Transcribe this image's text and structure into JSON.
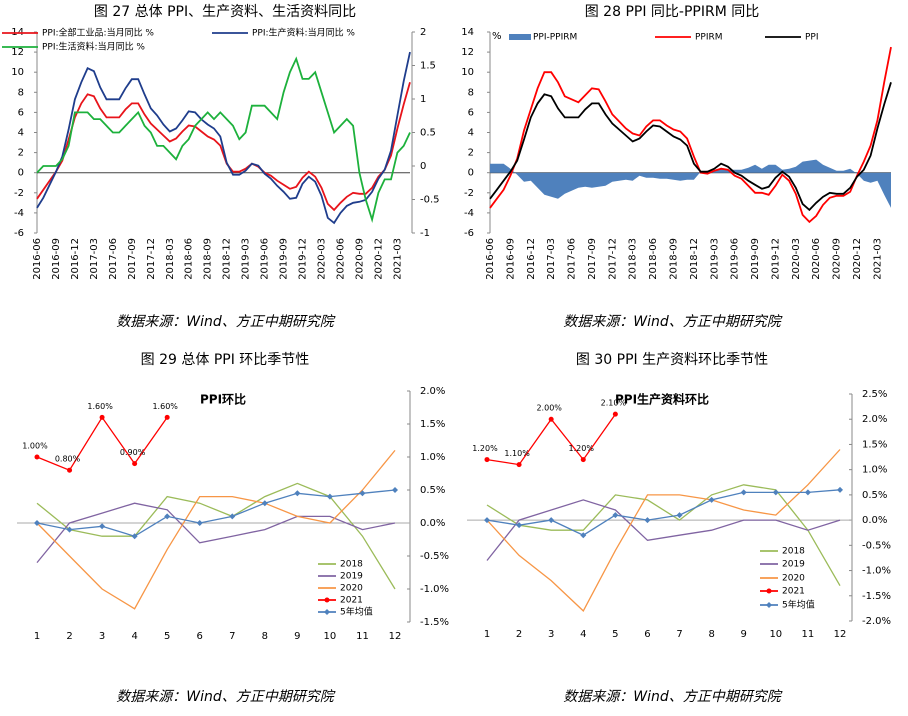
{
  "chart_data": [
    {
      "type": "line",
      "title": "图 27 总体 PPI、生产资料、生活资料同比",
      "source": "数据来源：Wind、方正中期研究院",
      "categories": [
        "2016-06",
        null,
        null,
        "2016-09",
        null,
        null,
        "2016-12",
        null,
        null,
        "2017-03",
        null,
        null,
        "2017-06",
        null,
        null,
        "2017-09",
        null,
        null,
        "2017-12",
        null,
        null,
        "2018-03",
        null,
        null,
        "2018-06",
        null,
        null,
        "2018-09",
        null,
        null,
        "2018-12",
        null,
        null,
        "2019-03",
        null,
        null,
        "2019-06",
        null,
        null,
        "2019-09",
        null,
        null,
        "2019-12",
        null,
        null,
        "2020-03",
        null,
        null,
        "2020-06",
        null,
        null,
        "2020-09",
        null,
        null,
        "2020-12",
        null,
        null,
        "2021-03",
        null,
        null
      ],
      "ylim": [
        -6,
        14
      ],
      "yticks": [
        -6,
        -4,
        -2,
        0,
        2,
        4,
        6,
        8,
        10,
        12,
        14
      ],
      "y2lim": [
        -1,
        2
      ],
      "y2ticks": [
        -1,
        -0.5,
        0,
        0.5,
        1,
        1.5,
        2
      ],
      "legend": "top-left",
      "series": [
        {
          "name": "PPI:全部工业品:当月同比 %",
          "color": "#e8141b",
          "values": [
            -2.6,
            -1.7,
            -0.8,
            0.1,
            1.2,
            3.3,
            5.5,
            6.9,
            7.8,
            7.6,
            6.4,
            5.5,
            5.5,
            5.5,
            6.3,
            6.9,
            6.9,
            5.8,
            4.9,
            4.3,
            3.7,
            3.1,
            3.4,
            4.1,
            4.7,
            4.6,
            4.1,
            3.6,
            3.3,
            2.7,
            0.9,
            0.1,
            0.1,
            0.4,
            0.9,
            0.6,
            0.0,
            -0.3,
            -0.8,
            -1.2,
            -1.6,
            -1.4,
            -0.5,
            0.1,
            -0.4,
            -1.5,
            -3.1,
            -3.7,
            -3.0,
            -2.4,
            -2.0,
            -2.1,
            -2.1,
            -1.5,
            -0.4,
            0.3,
            1.7,
            4.4,
            6.8,
            9.0
          ]
        },
        {
          "name": "PPI:生产资料:当月同比 %",
          "color": "#1f3d8c",
          "values": [
            -3.5,
            -2.5,
            -1.2,
            0.1,
            1.6,
            4.3,
            7.3,
            9.0,
            10.4,
            10.1,
            8.5,
            7.3,
            7.3,
            7.3,
            8.4,
            9.3,
            9.3,
            7.8,
            6.4,
            5.7,
            4.8,
            4.1,
            4.4,
            5.2,
            6.1,
            6.0,
            5.3,
            4.8,
            4.4,
            3.6,
            1.0,
            -0.2,
            -0.2,
            0.2,
            0.9,
            0.7,
            -0.1,
            -0.6,
            -1.3,
            -1.9,
            -2.6,
            -2.5,
            -1.1,
            -0.4,
            -0.9,
            -2.3,
            -4.5,
            -5.0,
            -4.0,
            -3.3,
            -3.0,
            -2.9,
            -2.7,
            -1.9,
            -0.6,
            0.3,
            2.2,
            5.7,
            9.1,
            12.0
          ]
        },
        {
          "name": "PPI:生活资料:当月同比 %",
          "color": "#1db13c",
          "axis": "y2",
          "values": [
            -0.1,
            0,
            0,
            0,
            0.1,
            0.3,
            0.8,
            0.8,
            0.8,
            0.7,
            0.7,
            0.6,
            0.5,
            0.5,
            0.6,
            0.7,
            0.8,
            0.6,
            0.5,
            0.3,
            0.3,
            0.2,
            0.1,
            0.3,
            0.4,
            0.6,
            0.7,
            0.8,
            0.7,
            0.8,
            0.7,
            0.6,
            0.4,
            0.5,
            0.9,
            0.9,
            0.9,
            0.8,
            0.7,
            1.1,
            1.4,
            1.6,
            1.3,
            1.3,
            1.4,
            1.1,
            0.8,
            0.5,
            0.6,
            0.7,
            0.6,
            -0.1,
            -0.5,
            -0.8,
            -0.4,
            -0.2,
            -0.2,
            0.2,
            0.3,
            0.5
          ]
        }
      ]
    },
    {
      "type": "line",
      "title": "图 28 PPI 同比-PPIRM 同比",
      "source": "数据来源：Wind、方正中期研究院",
      "ylabel": "%",
      "categories": [
        "2016-06",
        null,
        null,
        "2016-09",
        null,
        null,
        "2016-12",
        null,
        null,
        "2017-03",
        null,
        null,
        "2017-06",
        null,
        null,
        "2017-09",
        null,
        null,
        "2017-12",
        null,
        null,
        "2018-03",
        null,
        null,
        "2018-06",
        null,
        null,
        "2018-09",
        null,
        null,
        "2018-12",
        null,
        null,
        "2019-03",
        null,
        null,
        "2019-06",
        null,
        null,
        "2019-09",
        null,
        null,
        "2019-12",
        null,
        null,
        "2020-03",
        null,
        null,
        "2020-06",
        null,
        null,
        "2020-09",
        null,
        null,
        "2020-12",
        null,
        null,
        "2021-03",
        null,
        null
      ],
      "ylim": [
        -6,
        14
      ],
      "yticks": [
        -6,
        -4,
        -2,
        0,
        2,
        4,
        6,
        8,
        10,
        12,
        14
      ],
      "legend": "top",
      "series": [
        {
          "name": "PPI-PPIRM",
          "type": "area",
          "color": "#4f81bd",
          "values": [
            0.9,
            0.9,
            0.9,
            0.4,
            -0.2,
            -0.9,
            -0.8,
            -1.5,
            -2.2,
            -2.4,
            -2.6,
            -2.1,
            -1.8,
            -1.5,
            -1.4,
            -1.5,
            -1.4,
            -1.3,
            -0.9,
            -0.8,
            -0.7,
            -0.8,
            -0.3,
            -0.5,
            -0.5,
            -0.6,
            -0.6,
            -0.7,
            -0.8,
            -0.7,
            -0.7,
            0.1,
            0.2,
            0.2,
            0.5,
            0.3,
            0.3,
            0.3,
            0.5,
            0.8,
            0.4,
            0.8,
            0.8,
            0.3,
            0.4,
            0.6,
            1.1,
            1.2,
            1.3,
            0.8,
            0.5,
            0.2,
            0.2,
            0.4,
            -0.1,
            -0.8,
            -1.0,
            -0.8,
            -2.2,
            -3.5
          ]
        },
        {
          "name": "PPIRM",
          "color": "#ff0000",
          "values": [
            -3.5,
            -2.6,
            -1.7,
            -0.3,
            1.4,
            4.2,
            6.3,
            8.4,
            10.0,
            10.0,
            9.0,
            7.6,
            7.3,
            7.0,
            7.7,
            8.4,
            8.3,
            7.1,
            5.8,
            5.1,
            4.4,
            3.9,
            3.7,
            4.6,
            5.2,
            5.2,
            4.7,
            4.3,
            4.1,
            3.4,
            1.6,
            0.0,
            -0.1,
            0.2,
            0.4,
            0.3,
            -0.3,
            -0.6,
            -1.3,
            -2.0,
            -2.0,
            -2.2,
            -1.3,
            -0.2,
            -0.8,
            -2.1,
            -4.2,
            -4.9,
            -4.3,
            -3.2,
            -2.5,
            -2.3,
            -2.3,
            -1.9,
            -0.3,
            1.1,
            2.7,
            5.2,
            9.0,
            12.5
          ]
        },
        {
          "name": "PPI",
          "color": "#000000",
          "values": [
            -2.6,
            -1.7,
            -0.8,
            0.1,
            1.2,
            3.3,
            5.5,
            6.9,
            7.8,
            7.6,
            6.4,
            5.5,
            5.5,
            5.5,
            6.3,
            6.9,
            6.9,
            5.8,
            4.9,
            4.3,
            3.7,
            3.1,
            3.4,
            4.1,
            4.7,
            4.6,
            4.1,
            3.6,
            3.3,
            2.7,
            0.9,
            0.1,
            0.1,
            0.4,
            0.9,
            0.6,
            0.0,
            -0.3,
            -0.8,
            -1.2,
            -1.6,
            -1.4,
            -0.5,
            0.1,
            -0.4,
            -1.5,
            -3.1,
            -3.7,
            -3.0,
            -2.4,
            -2.0,
            -2.1,
            -2.1,
            -1.5,
            -0.4,
            0.3,
            1.7,
            4.4,
            6.8,
            9.0
          ]
        }
      ]
    },
    {
      "type": "line",
      "title": "图 29 总体 PPI 环比季节性",
      "source": "数据来源：Wind、方正中期研究院",
      "annotation": "PPI环比",
      "categories": [
        "1",
        "2",
        "3",
        "4",
        "5",
        "6",
        "7",
        "8",
        "9",
        "10",
        "11",
        "12"
      ],
      "y_axis_position": "right",
      "legend": "bottom-right",
      "ylim": [
        -1.5,
        2.0
      ],
      "yticks": [
        {
          "value": -1.5,
          "label": "-1.5%"
        },
        {
          "value": -1.0,
          "label": "-1.0%"
        },
        {
          "value": -0.5,
          "label": "-0.5%"
        },
        {
          "value": 0,
          "label": "0.0%"
        },
        {
          "value": 0.5,
          "label": "0.5%"
        },
        {
          "value": 1.0,
          "label": "1.0%"
        },
        {
          "value": 1.5,
          "label": "1.5%"
        },
        {
          "value": 2.0,
          "label": "2.0%"
        }
      ],
      "series": [
        {
          "name": "2018",
          "color": "#9bbb59",
          "values": [
            0.3,
            -0.1,
            -0.2,
            -0.2,
            0.4,
            0.3,
            0.1,
            0.4,
            0.6,
            0.4,
            -0.2,
            -1.0
          ]
        },
        {
          "name": "2019",
          "color": "#8064a2",
          "values": [
            -0.6,
            0,
            0.15,
            0.3,
            0.2,
            -0.3,
            -0.2,
            -0.1,
            0.1,
            0.1,
            -0.1,
            0
          ]
        },
        {
          "name": "2020",
          "color": "#f79646",
          "values": [
            0,
            -0.5,
            -1.0,
            -1.3,
            -0.4,
            0.4,
            0.4,
            0.3,
            0.1,
            0,
            0.5,
            1.1
          ]
        },
        {
          "name": "2021",
          "color": "#ff0000",
          "marker": "circle",
          "values": [
            1.0,
            0.8,
            1.6,
            0.9,
            1.6,
            null,
            null,
            null,
            null,
            null,
            null,
            null
          ],
          "value_labels": [
            "1.00%",
            "0.80%",
            "1.60%",
            "0.90%",
            "1.60%",
            null,
            null,
            null,
            null,
            null,
            null,
            null
          ]
        },
        {
          "name": "5年均值",
          "color": "#4f81bd",
          "marker": "diamond",
          "values": [
            0,
            -0.1,
            -0.05,
            -0.2,
            0.1,
            0,
            0.1,
            0.3,
            0.45,
            0.4,
            0.45,
            0.5
          ]
        }
      ]
    },
    {
      "type": "line",
      "title": "图 30 PPI 生产资料环比季节性",
      "source": "数据来源：Wind、方正中期研究院",
      "annotation": "PPI生产资料环比",
      "categories": [
        "1",
        "2",
        "3",
        "4",
        "5",
        "6",
        "7",
        "8",
        "9",
        "10",
        "11",
        "12"
      ],
      "y_axis_position": "right",
      "legend": "bottom-right",
      "ylim": [
        -2.0,
        2.5
      ],
      "yticks": [
        {
          "value": -2.0,
          "label": "-2.0%"
        },
        {
          "value": -1.5,
          "label": "-1.5%"
        },
        {
          "value": -1.0,
          "label": "-1.0%"
        },
        {
          "value": -0.5,
          "label": "-0.5%"
        },
        {
          "value": 0,
          "label": "0.0%"
        },
        {
          "value": 0.5,
          "label": "0.5%"
        },
        {
          "value": 1.0,
          "label": "1.0%"
        },
        {
          "value": 1.5,
          "label": "1.5%"
        },
        {
          "value": 2.0,
          "label": "2.0%"
        },
        {
          "value": 2.5,
          "label": "2.5%"
        }
      ],
      "series": [
        {
          "name": "2018",
          "color": "#9bbb59",
          "values": [
            0.3,
            -0.1,
            -0.2,
            -0.2,
            0.5,
            0.4,
            0.0,
            0.5,
            0.7,
            0.6,
            -0.2,
            -1.3
          ]
        },
        {
          "name": "2019",
          "color": "#8064a2",
          "values": [
            -0.8,
            0.0,
            0.2,
            0.4,
            0.2,
            -0.4,
            -0.3,
            -0.2,
            0.0,
            0.0,
            -0.2,
            0.0
          ]
        },
        {
          "name": "2020",
          "color": "#f79646",
          "values": [
            0.0,
            -0.7,
            -1.2,
            -1.8,
            -0.6,
            0.5,
            0.5,
            0.4,
            0.2,
            0.1,
            0.7,
            1.4
          ]
        },
        {
          "name": "2021",
          "color": "#ff0000",
          "marker": "circle",
          "values": [
            1.2,
            1.1,
            2.0,
            1.2,
            2.1,
            null,
            null,
            null,
            null,
            null,
            null,
            null
          ],
          "value_labels": [
            "1.20%",
            "1.10%",
            "2.00%",
            "1.20%",
            "2.10%",
            null,
            null,
            null,
            null,
            null,
            null,
            null
          ]
        },
        {
          "name": "5年均值",
          "color": "#4f81bd",
          "marker": "diamond",
          "values": [
            0.0,
            -0.1,
            0.0,
            -0.3,
            0.1,
            0.0,
            0.1,
            0.4,
            0.55,
            0.55,
            0.55,
            0.6
          ]
        }
      ]
    }
  ]
}
